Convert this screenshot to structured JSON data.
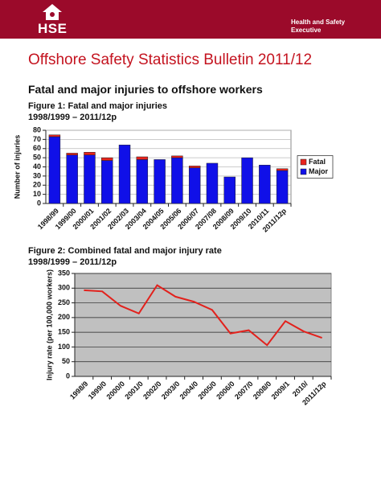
{
  "header": {
    "logo": "HSE",
    "organisation": "Health and Safety Executive"
  },
  "title": "Offshore Safety Statistics Bulletin 2011/12",
  "subtitle": "Fatal and major injuries to offshore workers",
  "chart_data": [
    {
      "type": "bar",
      "stacked": true,
      "title": "Figure 1: Fatal and major injuries",
      "subtitle": "1998/1999 – 2011/12p",
      "y_label": "Number of injuries",
      "categories": [
        "1998/99",
        "1999/00",
        "2000/01",
        "2001/02",
        "2002/03",
        "2003/04",
        "2004/05",
        "2005/06",
        "2006/07",
        "2007/08",
        "2008/09",
        "2009/10",
        "2010/11",
        "2011/12p"
      ],
      "series": [
        {
          "name": "Fatal",
          "color": "#e8231c",
          "values": [
            2,
            2,
            3,
            3,
            0,
            3,
            0,
            2,
            2,
            0,
            0,
            0,
            0,
            2
          ]
        },
        {
          "name": "Major",
          "color": "#1010e8",
          "values": [
            73,
            53,
            53,
            47,
            64,
            48,
            48,
            50,
            39,
            44,
            29,
            50,
            42,
            36
          ]
        }
      ],
      "ylim": [
        0,
        80
      ],
      "yticks": [
        0,
        10,
        20,
        30,
        40,
        50,
        60,
        70,
        80
      ],
      "grid": true,
      "legend": "right"
    },
    {
      "type": "line",
      "title": "Figure 2: Combined fatal and major injury rate",
      "subtitle": "1998/1999 – 2011/12p",
      "y_label": "Injury rate (per 100,000 workers)",
      "categories": [
        "1998/9",
        "1999/0",
        "2000/0",
        "2001/0",
        "2002/0",
        "2003/0",
        "2004/0",
        "2005/0",
        "2006/0",
        "2007/0",
        "2008/0",
        "2009/1",
        "2010/",
        "2011/12p"
      ],
      "color": "#e2211c",
      "values": [
        293,
        289,
        240,
        214,
        310,
        271,
        254,
        226,
        146,
        157,
        106,
        188,
        153,
        131
      ],
      "ylim": [
        0,
        350
      ],
      "yticks": [
        0,
        50,
        100,
        150,
        200,
        250,
        300,
        350
      ],
      "grid": true,
      "background": "#c0c0c0"
    }
  ]
}
